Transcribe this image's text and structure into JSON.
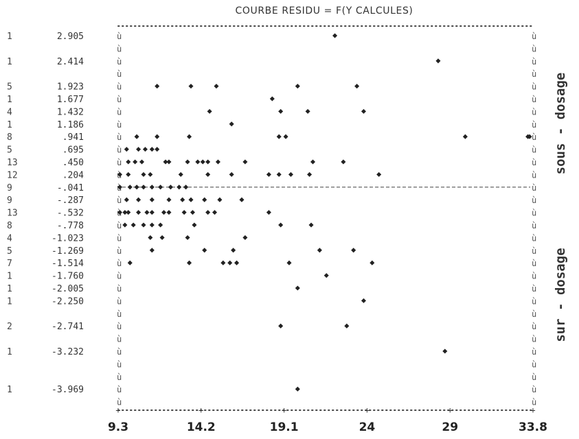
{
  "chart_data": {
    "type": "scatter",
    "title": "COURBE RESIDU = F(Y CALCULES)",
    "x_ticks": [
      "9.3",
      "14.2",
      "19.1",
      "24",
      "29",
      "33.8"
    ],
    "xlim": [
      9.3,
      33.8
    ],
    "rows": [
      {
        "count": "1",
        "label": "2.905",
        "points": [
          22.1
        ]
      },
      {
        "count": "",
        "label": "",
        "points": []
      },
      {
        "count": "1",
        "label": "2.414",
        "points": [
          28.2
        ]
      },
      {
        "count": "",
        "label": "",
        "points": []
      },
      {
        "count": "5",
        "label": "1.923",
        "points": [
          11.6,
          13.6,
          15.1,
          19.9,
          23.4
        ]
      },
      {
        "count": "1",
        "label": "1.677",
        "points": [
          18.4
        ]
      },
      {
        "count": "4",
        "label": "1.432",
        "points": [
          14.7,
          18.9,
          20.5,
          23.8
        ]
      },
      {
        "count": "1",
        "label": "1.186",
        "points": [
          16.0
        ]
      },
      {
        "count": "8",
        "label": ".941",
        "points": [
          10.4,
          11.6,
          13.5,
          18.8,
          19.2,
          29.8,
          33.5,
          33.6
        ]
      },
      {
        "count": "5",
        "label": ".695",
        "points": [
          9.8,
          10.5,
          10.9,
          11.3,
          11.6
        ]
      },
      {
        "count": "13",
        "label": ".450",
        "points": [
          9.9,
          10.3,
          10.7,
          12.1,
          12.3,
          13.4,
          14.0,
          14.3,
          14.6,
          15.2,
          16.8,
          20.8,
          22.6
        ]
      },
      {
        "count": "12",
        "label": ".204",
        "points": [
          9.4,
          9.9,
          10.8,
          11.2,
          13.0,
          14.6,
          16.0,
          18.2,
          18.8,
          19.5,
          20.6,
          24.7
        ]
      },
      {
        "count": "9",
        "label": "-.041",
        "points": [
          9.4,
          10.0,
          10.4,
          10.8,
          11.3,
          11.8,
          12.4,
          12.9,
          13.3
        ]
      },
      {
        "count": "9",
        "label": "-.287",
        "points": [
          9.8,
          10.5,
          11.3,
          12.3,
          13.1,
          13.6,
          14.4,
          15.3,
          16.6
        ]
      },
      {
        "count": "13",
        "label": "-.532",
        "points": [
          9.4,
          9.7,
          9.9,
          10.5,
          11.0,
          11.3,
          12.0,
          12.3,
          13.2,
          13.7,
          14.6,
          15.0,
          18.2
        ]
      },
      {
        "count": "8",
        "label": "-.778",
        "points": [
          9.7,
          10.2,
          10.8,
          11.3,
          11.8,
          13.8,
          18.9,
          20.7
        ]
      },
      {
        "count": "4",
        "label": "-1.023",
        "points": [
          11.2,
          11.9,
          13.4,
          16.8
        ]
      },
      {
        "count": "5",
        "label": "-1.269",
        "points": [
          11.3,
          14.4,
          16.1,
          21.2,
          23.2
        ]
      },
      {
        "count": "7",
        "label": "-1.514",
        "points": [
          10.0,
          13.5,
          15.5,
          15.9,
          16.3,
          19.4,
          24.3
        ]
      },
      {
        "count": "1",
        "label": "-1.760",
        "points": [
          21.6
        ]
      },
      {
        "count": "1",
        "label": "-2.005",
        "points": [
          19.9
        ]
      },
      {
        "count": "1",
        "label": "-2.250",
        "points": [
          23.8
        ]
      },
      {
        "count": "",
        "label": "",
        "points": []
      },
      {
        "count": "2",
        "label": "-2.741",
        "points": [
          18.9,
          22.8
        ]
      },
      {
        "count": "",
        "label": "",
        "points": []
      },
      {
        "count": "1",
        "label": "-3.232",
        "points": [
          28.6
        ]
      },
      {
        "count": "",
        "label": "",
        "points": []
      },
      {
        "count": "",
        "label": "",
        "points": []
      },
      {
        "count": "1",
        "label": "-3.969",
        "points": [
          19.9
        ]
      }
    ],
    "zero_line_label": "-.041",
    "annotations": [
      "sous - dosage",
      "sur - dosage"
    ],
    "grid": false
  }
}
